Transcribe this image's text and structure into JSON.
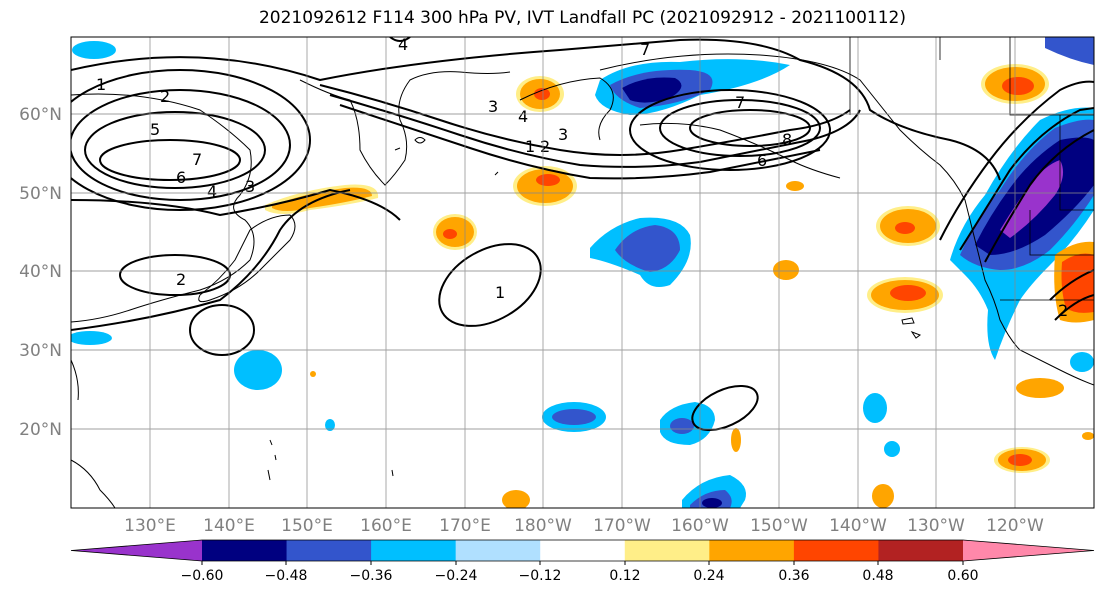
{
  "title": "2021092612 F114 300 hPa PV, IVT Landfall PC (2021092912 - 2021100112)",
  "map": {
    "lat_labels": [
      "60°N",
      "50°N",
      "40°N",
      "30°N",
      "20°N"
    ],
    "lon_labels": [
      "130°E",
      "140°E",
      "150°E",
      "160°E",
      "170°E",
      "180°W",
      "170°W",
      "160°W",
      "150°W",
      "140°W",
      "130°W",
      "120°W"
    ],
    "contour_labels": [
      "1",
      "2",
      "5",
      "6",
      "7",
      "4",
      "3",
      "2",
      "4",
      "4",
      "3",
      "2",
      "1",
      "7",
      "6",
      "8",
      "7",
      "1",
      "3",
      "2"
    ]
  },
  "colorbar": {
    "colors": [
      "#9933cc",
      "#000080",
      "#3355cc",
      "#00bfff",
      "#b0e0ff",
      "#ffffff",
      "#ffee88",
      "#ffa500",
      "#ff4500",
      "#b22222",
      "#ff88aa"
    ],
    "tick_labels": [
      "−0.60",
      "−0.48",
      "−0.36",
      "−0.24",
      "−0.12",
      "0.12",
      "0.24",
      "0.36",
      "0.48",
      "0.60"
    ]
  }
}
